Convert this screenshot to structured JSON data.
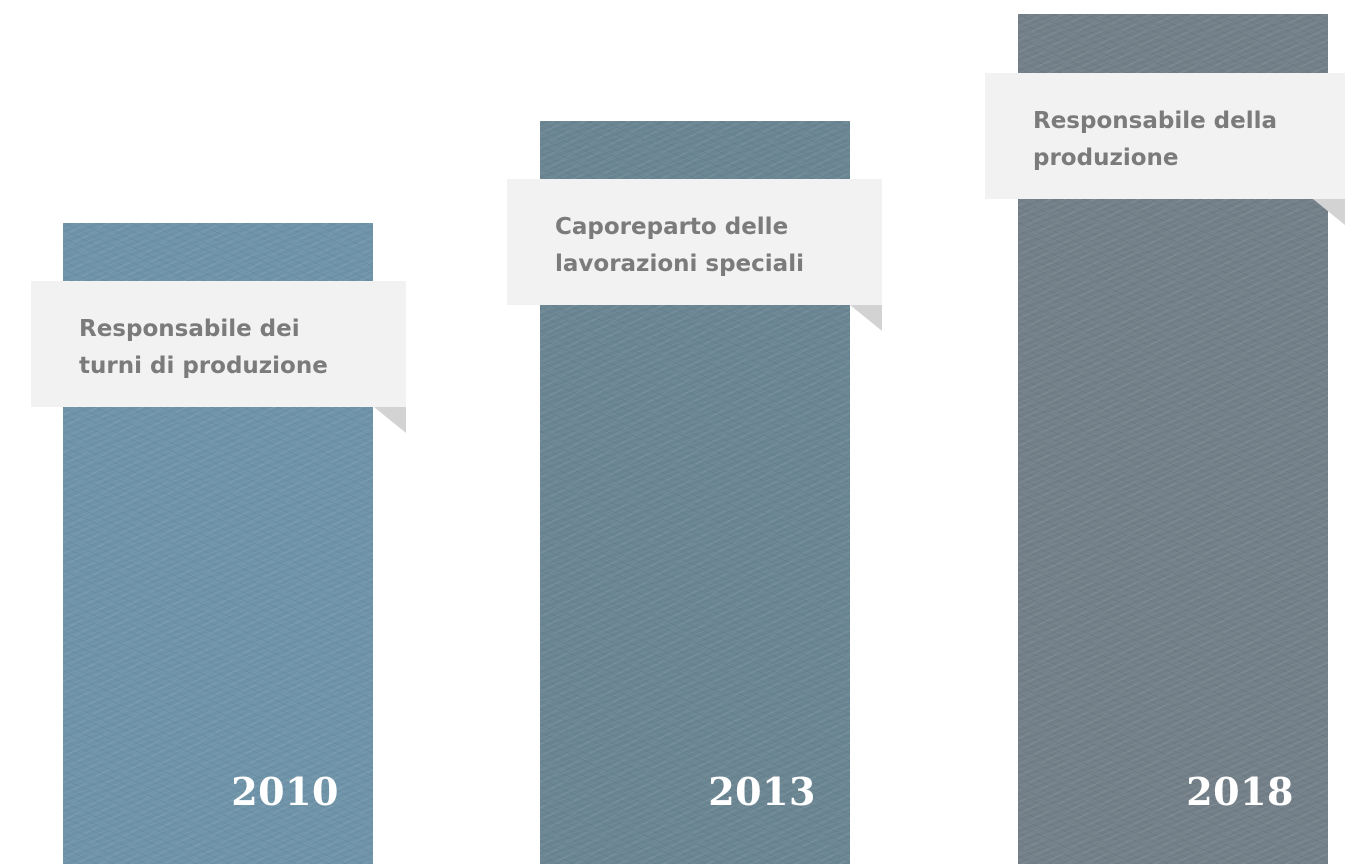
{
  "colors": {
    "column_2010": "#6e93a8",
    "column_2013": "#6a8592",
    "column_2018": "#737f88",
    "card_background": "#f2f2f2",
    "card_text": "#7b7b7b",
    "year_text": "#ffffff"
  },
  "milestones": [
    {
      "year": "2010",
      "role_line_1": "Responsabile dei",
      "role_line_2": "turni di produzione"
    },
    {
      "year": "2013",
      "role_line_1": "Caporeparto delle",
      "role_line_2": "lavorazioni speciali"
    },
    {
      "year": "2018",
      "role_line_1": "Responsabile della",
      "role_line_2": "produzione"
    }
  ]
}
